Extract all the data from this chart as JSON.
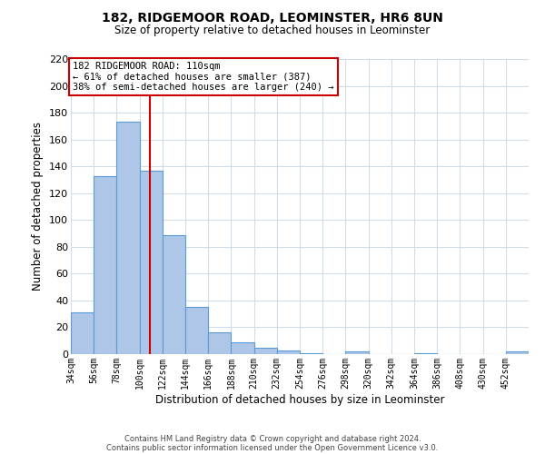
{
  "title": "182, RIDGEMOOR ROAD, LEOMINSTER, HR6 8UN",
  "subtitle": "Size of property relative to detached houses in Leominster",
  "xlabel": "Distribution of detached houses by size in Leominster",
  "ylabel": "Number of detached properties",
  "footer_line1": "Contains HM Land Registry data © Crown copyright and database right 2024.",
  "footer_line2": "Contains public sector information licensed under the Open Government Licence v3.0.",
  "annotation_title": "182 RIDGEMOOR ROAD: 110sqm",
  "annotation_line1": "← 61% of detached houses are smaller (387)",
  "annotation_line2": "38% of semi-detached houses are larger (240) →",
  "bin_edges": [
    34,
    56,
    78,
    100,
    122,
    144,
    166,
    188,
    210,
    232,
    254,
    276,
    298,
    320,
    342,
    364,
    386,
    408,
    430,
    452,
    474
  ],
  "bar_heights": [
    31,
    133,
    173,
    137,
    89,
    35,
    16,
    9,
    5,
    3,
    1,
    0,
    2,
    0,
    0,
    1,
    0,
    0,
    0,
    2
  ],
  "property_size": 110,
  "bar_color": "#aec6e8",
  "bar_edge_color": "#5b9bd5",
  "vline_color": "#cc0000",
  "annotation_box_color": "#cc0000",
  "background_color": "#ffffff",
  "grid_color": "#d0dde8",
  "ylim": [
    0,
    220
  ],
  "yticks": [
    0,
    20,
    40,
    60,
    80,
    100,
    120,
    140,
    160,
    180,
    200,
    220
  ]
}
